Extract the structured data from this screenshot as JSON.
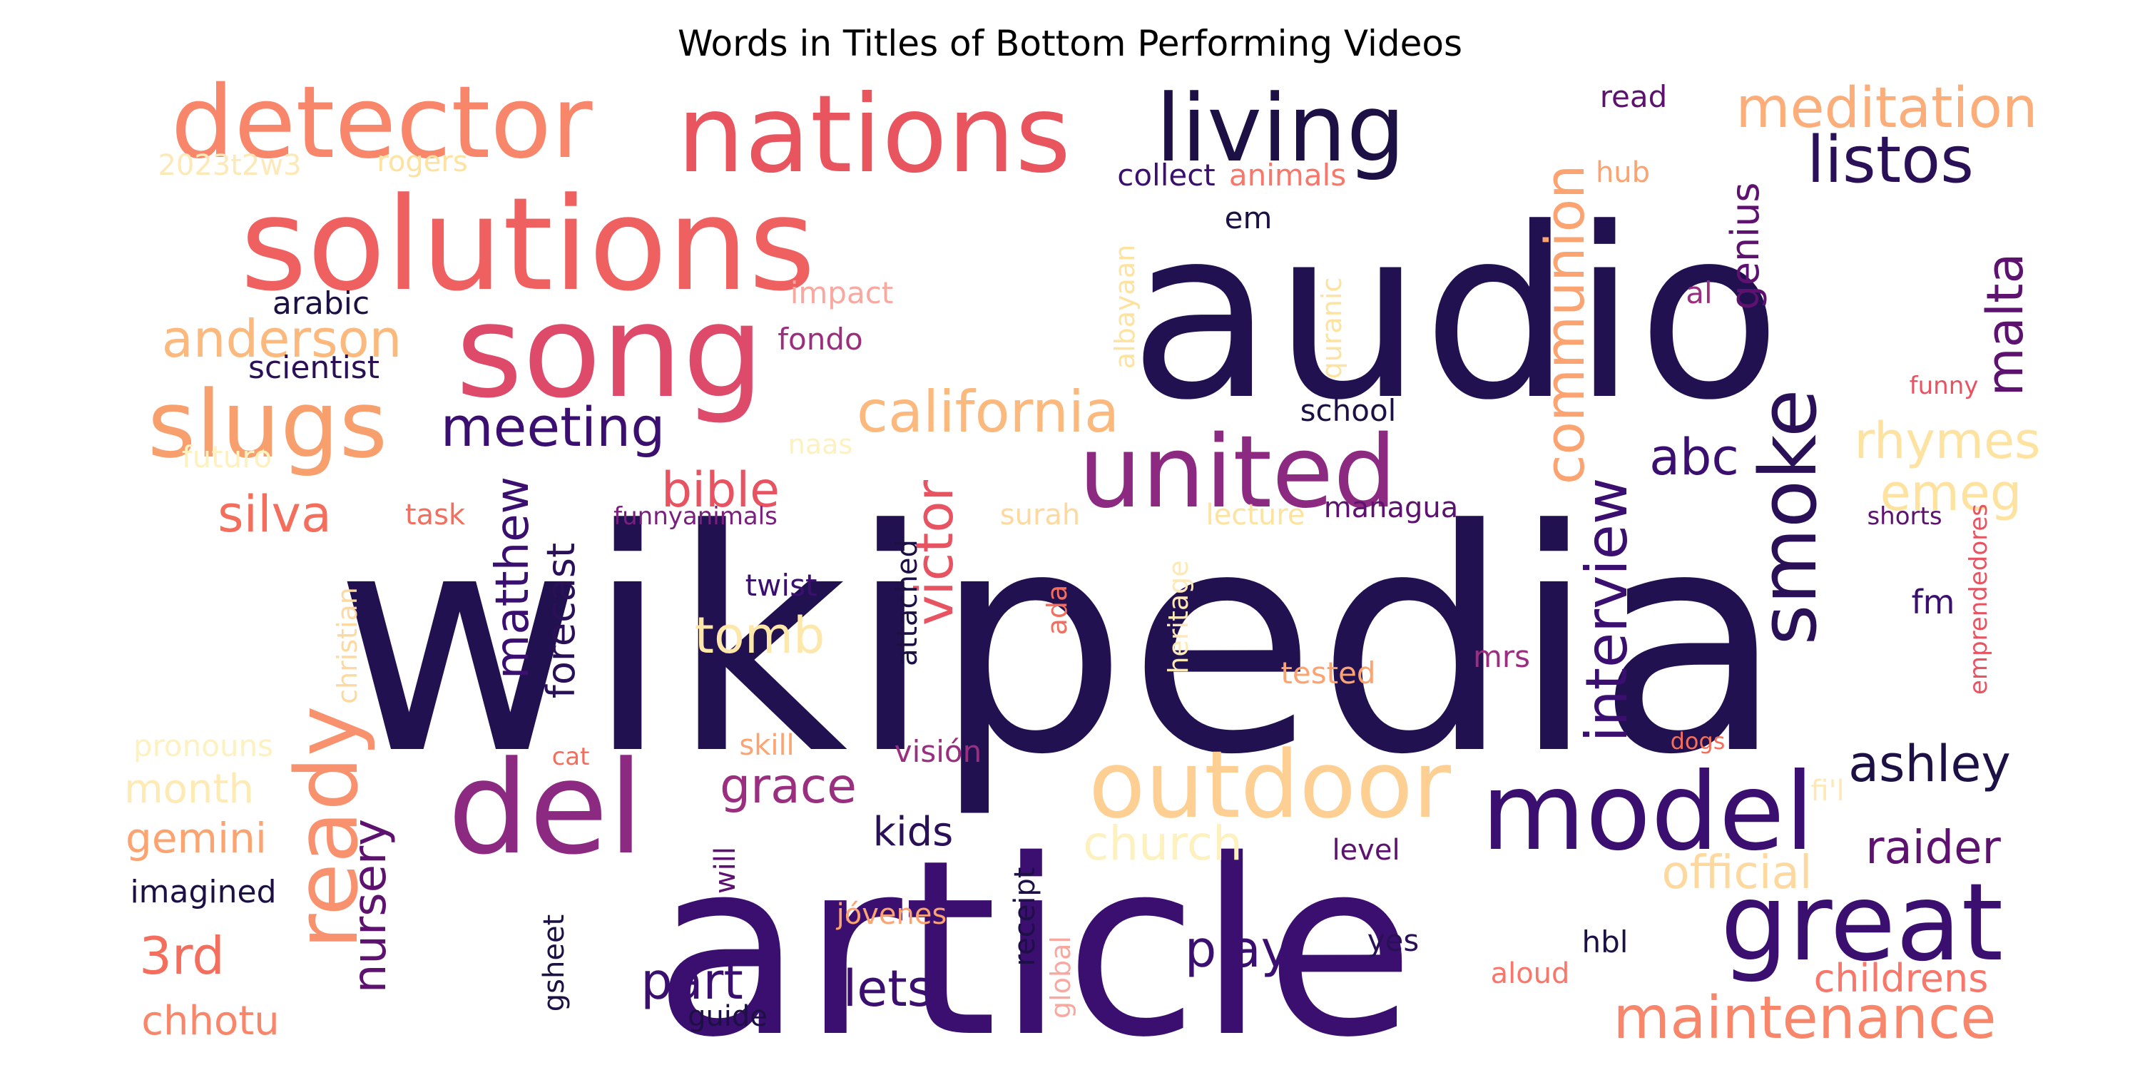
{
  "chart_data": {
    "type": "wordcloud",
    "title": "Words in Titles of Bottom Performing Videos",
    "colormap": "magma",
    "background": "#ffffff",
    "words": [
      {
        "text": "wikipedia",
        "weight": 1.0,
        "color": "#221150",
        "rotated": false
      },
      {
        "text": "audio",
        "weight": 0.78,
        "color": "#221150",
        "rotated": false
      },
      {
        "text": "article",
        "weight": 0.74,
        "color": "#3b0f70",
        "rotated": false
      },
      {
        "text": "solutions",
        "weight": 0.36,
        "color": "#ee6160",
        "rotated": false
      },
      {
        "text": "nations",
        "weight": 0.31,
        "color": "#e8555f",
        "rotated": false
      },
      {
        "text": "song",
        "weight": 0.3,
        "color": "#dd4a6a",
        "rotated": false
      },
      {
        "text": "detector",
        "weight": 0.28,
        "color": "#f8866a",
        "rotated": false
      },
      {
        "text": "del",
        "weight": 0.31,
        "color": "#8c2981",
        "rotated": false
      },
      {
        "text": "united",
        "weight": 0.27,
        "color": "#8c2981",
        "rotated": false
      },
      {
        "text": "living",
        "weight": 0.25,
        "color": "#1c1044",
        "rotated": false
      },
      {
        "text": "outdoor",
        "weight": 0.25,
        "color": "#fecf92",
        "rotated": false
      },
      {
        "text": "slugs",
        "weight": 0.23,
        "color": "#f7a06e",
        "rotated": false
      },
      {
        "text": "model",
        "weight": 0.23,
        "color": "#3b0f70",
        "rotated": false
      },
      {
        "text": "great",
        "weight": 0.25,
        "color": "#3b0f70",
        "rotated": false
      },
      {
        "text": "smoke",
        "weight": 0.2,
        "color": "#2a1057",
        "rotated": true
      },
      {
        "text": "ready",
        "weight": 0.22,
        "color": "#f8926e",
        "rotated": true
      },
      {
        "text": "meditation",
        "weight": 0.13,
        "color": "#fcae7a",
        "rotated": false
      },
      {
        "text": "listos",
        "weight": 0.14,
        "color": "#2a1057",
        "rotated": false
      },
      {
        "text": "communion",
        "weight": 0.13,
        "color": "#fca471",
        "rotated": true
      },
      {
        "text": "california",
        "weight": 0.14,
        "color": "#fcb97e",
        "rotated": false
      },
      {
        "text": "anderson",
        "weight": 0.12,
        "color": "#fcb97e",
        "rotated": false
      },
      {
        "text": "meeting",
        "weight": 0.13,
        "color": "#3b0f70",
        "rotated": false
      },
      {
        "text": "maintenance",
        "weight": 0.14,
        "color": "#f8866a",
        "rotated": false
      },
      {
        "text": "malta",
        "weight": 0.12,
        "color": "#5c126e",
        "rotated": true
      },
      {
        "text": "interview",
        "weight": 0.14,
        "color": "#3b0f70",
        "rotated": true
      },
      {
        "text": "victor",
        "weight": 0.12,
        "color": "#e85362",
        "rotated": true
      },
      {
        "text": "matthew",
        "weight": 0.11,
        "color": "#3b0f70",
        "rotated": true
      },
      {
        "text": "abc",
        "weight": 0.11,
        "color": "#3b0f70",
        "rotated": false
      },
      {
        "text": "rhymes",
        "weight": 0.11,
        "color": "#fde2a0",
        "rotated": false
      },
      {
        "text": "emeg",
        "weight": 0.11,
        "color": "#fde2a0",
        "rotated": false
      },
      {
        "text": "ashley",
        "weight": 0.11,
        "color": "#1c1044",
        "rotated": false
      },
      {
        "text": "silva",
        "weight": 0.1,
        "color": "#f36e5c",
        "rotated": false
      },
      {
        "text": "bible",
        "weight": 0.1,
        "color": "#e85362",
        "rotated": false
      },
      {
        "text": "tomb",
        "weight": 0.1,
        "color": "#fde7aa",
        "rotated": false
      },
      {
        "text": "forecast",
        "weight": 0.1,
        "color": "#2a1057",
        "rotated": true
      },
      {
        "text": "grace",
        "weight": 0.1,
        "color": "#9a2f80",
        "rotated": false
      },
      {
        "text": "church",
        "weight": 0.1,
        "color": "#fef1c0",
        "rotated": false
      },
      {
        "text": "nursery",
        "weight": 0.1,
        "color": "#5c126e",
        "rotated": true
      },
      {
        "text": "genius",
        "weight": 0.09,
        "color": "#5c126e",
        "rotated": true
      },
      {
        "text": "3rd",
        "weight": 0.1,
        "color": "#f36e5c",
        "rotated": false
      },
      {
        "text": "play",
        "weight": 0.1,
        "color": "#3b0f70",
        "rotated": false
      },
      {
        "text": "part",
        "weight": 0.1,
        "color": "#3b0f70",
        "rotated": false
      },
      {
        "text": "lets",
        "weight": 0.1,
        "color": "#3b0f70",
        "rotated": false
      },
      {
        "text": "raider",
        "weight": 0.1,
        "color": "#5c126e",
        "rotated": false
      },
      {
        "text": "official",
        "weight": 0.09,
        "color": "#fdd9a0",
        "rotated": false
      },
      {
        "text": "childrens",
        "weight": 0.08,
        "color": "#f8766a",
        "rotated": false
      },
      {
        "text": "gemini",
        "weight": 0.09,
        "color": "#fca471",
        "rotated": false
      },
      {
        "text": "month",
        "weight": 0.09,
        "color": "#feeab5",
        "rotated": false
      },
      {
        "text": "chhotu",
        "weight": 0.08,
        "color": "#f8866a",
        "rotated": false
      },
      {
        "text": "kids",
        "weight": 0.08,
        "color": "#2a1057",
        "rotated": false
      },
      {
        "text": "fm",
        "weight": 0.07,
        "color": "#3b0f70",
        "rotated": false
      },
      {
        "text": "scientist",
        "weight": 0.07,
        "color": "#2a1057",
        "rotated": false
      },
      {
        "text": "arabic",
        "weight": 0.07,
        "color": "#1c1044",
        "rotated": false
      },
      {
        "text": "imagined",
        "weight": 0.07,
        "color": "#1c1044",
        "rotated": false
      },
      {
        "text": "pronouns",
        "weight": 0.07,
        "color": "#fef1c0",
        "rotated": false
      },
      {
        "text": "futuro",
        "weight": 0.07,
        "color": "#fef1c0",
        "rotated": false
      },
      {
        "text": "2023t2w3",
        "weight": 0.07,
        "color": "#fde9b8",
        "rotated": false
      },
      {
        "text": "rogers",
        "weight": 0.07,
        "color": "#fde2a0",
        "rotated": false
      },
      {
        "text": "collect",
        "weight": 0.07,
        "color": "#3b0f70",
        "rotated": false
      },
      {
        "text": "animals",
        "weight": 0.07,
        "color": "#f8766a",
        "rotated": false
      },
      {
        "text": "read",
        "weight": 0.07,
        "color": "#5c126e",
        "rotated": false
      },
      {
        "text": "hub",
        "weight": 0.06,
        "color": "#fca471",
        "rotated": false
      },
      {
        "text": "em",
        "weight": 0.07,
        "color": "#1c1044",
        "rotated": false
      },
      {
        "text": "al",
        "weight": 0.07,
        "color": "#9a2f80",
        "rotated": false
      },
      {
        "text": "impact",
        "weight": 0.07,
        "color": "#f9a8a0",
        "rotated": false
      },
      {
        "text": "fondo",
        "weight": 0.07,
        "color": "#9a2f80",
        "rotated": false
      },
      {
        "text": "albayaan",
        "weight": 0.06,
        "color": "#fde2a0",
        "rotated": true
      },
      {
        "text": "quranic",
        "weight": 0.06,
        "color": "#fde2a0",
        "rotated": true
      },
      {
        "text": "school",
        "weight": 0.07,
        "color": "#1c1044",
        "rotated": false
      },
      {
        "text": "funny",
        "weight": 0.05,
        "color": "#e85362",
        "rotated": false
      },
      {
        "text": "shorts",
        "weight": 0.05,
        "color": "#5c126e",
        "rotated": false
      },
      {
        "text": "emprendedores",
        "weight": 0.05,
        "color": "#e85362",
        "rotated": true
      },
      {
        "text": "naas",
        "weight": 0.06,
        "color": "#fef1c0",
        "rotated": false
      },
      {
        "text": "task",
        "weight": 0.06,
        "color": "#f36e5c",
        "rotated": false
      },
      {
        "text": "funnyanimals",
        "weight": 0.05,
        "color": "#7a1f7f",
        "rotated": false
      },
      {
        "text": "surah",
        "weight": 0.06,
        "color": "#fdd9a0",
        "rotated": false
      },
      {
        "text": "lecture",
        "weight": 0.06,
        "color": "#fde2a0",
        "rotated": false
      },
      {
        "text": "managua",
        "weight": 0.06,
        "color": "#5c126e",
        "rotated": false
      },
      {
        "text": "christian",
        "weight": 0.06,
        "color": "#fdd9a0",
        "rotated": true
      },
      {
        "text": "twist",
        "weight": 0.07,
        "color": "#3b0f70",
        "rotated": false
      },
      {
        "text": "attached",
        "weight": 0.07,
        "color": "#1c1044",
        "rotated": true
      },
      {
        "text": "ada",
        "weight": 0.06,
        "color": "#f36e5c",
        "rotated": true
      },
      {
        "text": "heritage",
        "weight": 0.06,
        "color": "#fde9b8",
        "rotated": true
      },
      {
        "text": "mrs",
        "weight": 0.07,
        "color": "#9a2f80",
        "rotated": false
      },
      {
        "text": "tested",
        "weight": 0.07,
        "color": "#fca471",
        "rotated": false
      },
      {
        "text": "skill",
        "weight": 0.06,
        "color": "#fca471",
        "rotated": false
      },
      {
        "text": "visión",
        "weight": 0.06,
        "color": "#9a2f80",
        "rotated": false
      },
      {
        "text": "cat",
        "weight": 0.05,
        "color": "#f36e5c",
        "rotated": false
      },
      {
        "text": "dogs",
        "weight": 0.05,
        "color": "#f36e5c",
        "rotated": false
      },
      {
        "text": "fi'l",
        "weight": 0.06,
        "color": "#fde9b8",
        "rotated": false
      },
      {
        "text": "will",
        "weight": 0.06,
        "color": "#5c126e",
        "rotated": true
      },
      {
        "text": "receipt",
        "weight": 0.06,
        "color": "#1c1044",
        "rotated": true
      },
      {
        "text": "level",
        "weight": 0.06,
        "color": "#5c126e",
        "rotated": false
      },
      {
        "text": "jóvenes",
        "weight": 0.06,
        "color": "#fca471",
        "rotated": false
      },
      {
        "text": "gsheet",
        "weight": 0.06,
        "color": "#1c1044",
        "rotated": true
      },
      {
        "text": "global",
        "weight": 0.06,
        "color": "#f9a8a0",
        "rotated": true
      },
      {
        "text": "yes",
        "weight": 0.06,
        "color": "#2a1057",
        "rotated": false
      },
      {
        "text": "hbl",
        "weight": 0.06,
        "color": "#1c1044",
        "rotated": false
      },
      {
        "text": "aloud",
        "weight": 0.06,
        "color": "#f8766a",
        "rotated": false
      },
      {
        "text": "guide",
        "weight": 0.06,
        "color": "#1c1044",
        "rotated": false
      }
    ]
  }
}
